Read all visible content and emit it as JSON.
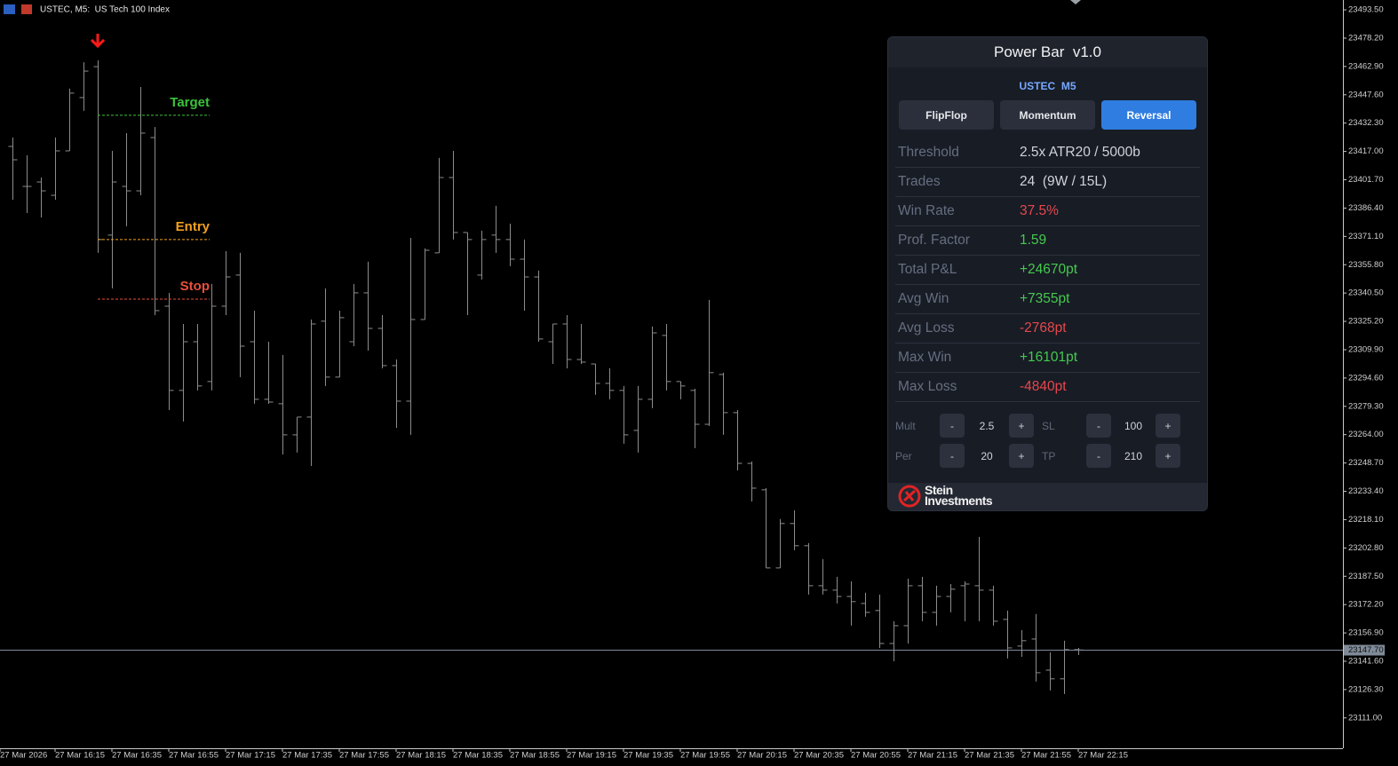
{
  "window": {
    "title": "USTEC, M5:  US Tech 100 Index"
  },
  "chart_data": {
    "type": "ohlc",
    "bar_color": "#8c8c8c",
    "open": [
      23419.7,
      23398.1,
      23400.5,
      23393.3,
      23417.3,
      23446.1,
      23462.8,
      23371.8,
      23398.1,
      23395.7,
      23424.5,
      23333.4,
      23287.9,
      23314.2,
      23292.7,
      23333.4,
      23350.2,
      23314.2,
      23283.1,
      23280.7,
      23263.9,
      23273.5,
      23325.3,
      23295.1,
      23314.2,
      23340.6,
      23321.4,
      23301.3,
      23282.1,
      23326.2,
      23362.2,
      23402.9,
      23373.2,
      23350.2,
      23371.8,
      23369.4,
      23358.8,
      23349.2,
      23314.2,
      23323.8,
      23304.6,
      23302.2,
      23291.7,
      23287.9,
      23266.3,
      23283.1,
      23317.6,
      23292.7,
      23287.9,
      23269.6,
      23296.5,
      23275.9,
      23248.5,
      23234.2,
      23192.0,
      23216.0,
      23204.0,
      23182.4,
      23180.0,
      23176.6,
      23172.8,
      23169.0,
      23151.2,
      23160.8,
      23182.4,
      23168.0,
      23176.6,
      23182.4,
      23182.4,
      23180.0,
      23164.2,
      23149.8,
      23153.6,
      23136.8,
      23132.1,
      23147.9
    ],
    "high": [
      23424.5,
      23414.9,
      23402.9,
      23424.5,
      23450.9,
      23465.2,
      23466.2,
      23417.3,
      23426.9,
      23451.8,
      23430.2,
      23340.6,
      23323.8,
      23323.8,
      23345.4,
      23363.1,
      23362.2,
      23331.0,
      23314.2,
      23307.0,
      23273.5,
      23326.2,
      23343.0,
      23331.0,
      23345.4,
      23357.4,
      23328.6,
      23304.6,
      23370.3,
      23364.6,
      23413.5,
      23417.3,
      23373.2,
      23374.2,
      23387.6,
      23378.0,
      23369.4,
      23352.6,
      23323.8,
      23328.6,
      23323.8,
      23302.2,
      23299.8,
      23290.3,
      23290.3,
      23322.4,
      23323.8,
      23292.7,
      23288.8,
      23336.8,
      23297.5,
      23277.3,
      23249.5,
      23235.1,
      23218.4,
      23223.1,
      23205.4,
      23196.8,
      23187.2,
      23184.8,
      23178.6,
      23177.6,
      23163.2,
      23186.2,
      23187.2,
      23182.4,
      23183.3,
      23184.8,
      23208.8,
      23182.4,
      23169.0,
      23158.4,
      23167.1,
      23146.4,
      23152.7,
      23148.8
    ],
    "low": [
      23390.9,
      23383.7,
      23381.3,
      23390.9,
      23417.3,
      23438.9,
      23362.2,
      23343.0,
      23376.6,
      23393.3,
      23328.6,
      23277.3,
      23271.1,
      23287.9,
      23287.9,
      23328.6,
      23295.1,
      23280.7,
      23280.7,
      23253.3,
      23254.3,
      23247.1,
      23290.3,
      23295.1,
      23311.8,
      23309.4,
      23299.8,
      23267.7,
      23263.9,
      23326.2,
      23362.2,
      23369.4,
      23328.6,
      23347.8,
      23362.2,
      23355.0,
      23331.0,
      23314.2,
      23302.2,
      23299.8,
      23302.2,
      23285.5,
      23283.1,
      23259.1,
      23254.3,
      23278.3,
      23287.9,
      23283.1,
      23256.7,
      23268.7,
      23263.9,
      23244.7,
      23227.9,
      23192.0,
      23192.0,
      23201.6,
      23177.6,
      23177.6,
      23172.8,
      23160.8,
      23165.6,
      23148.8,
      23141.6,
      23151.2,
      23163.2,
      23160.8,
      23168.0,
      23163.2,
      23163.2,
      23160.8,
      23143.1,
      23144.0,
      23130.6,
      23125.8,
      23123.9,
      23145.0
    ],
    "close": [
      23412.5,
      23398.1,
      23395.7,
      23417.3,
      23448.5,
      23460.4,
      23369.4,
      23400.5,
      23395.7,
      23426.9,
      23331.0,
      23287.9,
      23314.2,
      23290.3,
      23333.4,
      23349.2,
      23311.8,
      23283.1,
      23281.6,
      23263.9,
      23273.5,
      23323.8,
      23295.1,
      23327.2,
      23340.6,
      23321.4,
      23301.3,
      23282.1,
      23326.2,
      23363.6,
      23402.9,
      23373.2,
      23369.4,
      23369.4,
      23369.4,
      23358.8,
      23349.2,
      23315.7,
      23323.8,
      23304.6,
      23303.2,
      23291.7,
      23287.9,
      23263.9,
      23283.1,
      23319.0,
      23292.7,
      23290.3,
      23269.6,
      23297.5,
      23275.9,
      23248.5,
      23235.1,
      23192.0,
      23216.0,
      23204.0,
      23182.4,
      23180.0,
      23176.6,
      23173.8,
      23168.0,
      23151.2,
      23160.8,
      23182.4,
      23168.0,
      23176.6,
      23180.5,
      23183.3,
      23180.0,
      23163.2,
      23148.8,
      23152.7,
      23135.4,
      23132.1,
      23147.9,
      23147.7
    ],
    "xlim": [
      -0.875,
      93.625
    ],
    "xticks": [
      {
        "value": -0.875,
        "label": "27 Mar 2026"
      },
      {
        "value": 3,
        "label": "27 Mar 16:15"
      },
      {
        "value": 7,
        "label": "27 Mar 16:35"
      },
      {
        "value": 11,
        "label": "27 Mar 16:55"
      },
      {
        "value": 15,
        "label": "27 Mar 17:15"
      },
      {
        "value": 19,
        "label": "27 Mar 17:35"
      },
      {
        "value": 23,
        "label": "27 Mar 17:55"
      },
      {
        "value": 27,
        "label": "27 Mar 18:15"
      },
      {
        "value": 31,
        "label": "27 Mar 18:35"
      },
      {
        "value": 35,
        "label": "27 Mar 18:55"
      },
      {
        "value": 39,
        "label": "27 Mar 19:15"
      },
      {
        "value": 43,
        "label": "27 Mar 19:35"
      },
      {
        "value": 47,
        "label": "27 Mar 19:55"
      },
      {
        "value": 51,
        "label": "27 Mar 20:15"
      },
      {
        "value": 55,
        "label": "27 Mar 20:35"
      },
      {
        "value": 59,
        "label": "27 Mar 20:55"
      },
      {
        "value": 63,
        "label": "27 Mar 21:15"
      },
      {
        "value": 67,
        "label": "27 Mar 21:35"
      },
      {
        "value": 71,
        "label": "27 Mar 21:55"
      },
      {
        "value": 75,
        "label": "27 Mar 22:15"
      }
    ],
    "ylim": [
      23094.6,
      23498.8
    ],
    "yticks": [
      {
        "value": 23493.5,
        "label": "23493.50"
      },
      {
        "value": 23478.2,
        "label": "23478.20"
      },
      {
        "value": 23462.9,
        "label": "23462.90"
      },
      {
        "value": 23447.6,
        "label": "23447.60"
      },
      {
        "value": 23432.3,
        "label": "23432.30"
      },
      {
        "value": 23417,
        "label": "23417.00"
      },
      {
        "value": 23401.7,
        "label": "23401.70"
      },
      {
        "value": 23386.4,
        "label": "23386.40"
      },
      {
        "value": 23371.1,
        "label": "23371.10"
      },
      {
        "value": 23355.8,
        "label": "23355.80"
      },
      {
        "value": 23340.5,
        "label": "23340.50"
      },
      {
        "value": 23325.2,
        "label": "23325.20"
      },
      {
        "value": 23309.9,
        "label": "23309.90"
      },
      {
        "value": 23294.6,
        "label": "23294.60"
      },
      {
        "value": 23279.3,
        "label": "23279.30"
      },
      {
        "value": 23264,
        "label": "23264.00"
      },
      {
        "value": 23248.7,
        "label": "23248.70"
      },
      {
        "value": 23233.4,
        "label": "23233.40"
      },
      {
        "value": 23218.1,
        "label": "23218.10"
      },
      {
        "value": 23202.8,
        "label": "23202.80"
      },
      {
        "value": 23187.5,
        "label": "23187.50"
      },
      {
        "value": 23172.2,
        "label": "23172.20"
      },
      {
        "value": 23156.9,
        "label": "23156.90"
      },
      {
        "value": 23141.6,
        "label": "23141.60"
      },
      {
        "value": 23126.3,
        "label": "23126.30"
      },
      {
        "value": 23111,
        "label": "23111.00"
      }
    ],
    "grid": false,
    "current_price": {
      "value": 23147.7,
      "label": "23147.70"
    },
    "signal_index": 6,
    "signal_color": "#ff1a1a",
    "levels": [
      {
        "name": "Target",
        "value": 23436.5,
        "color": "#3cc23c"
      },
      {
        "name": "Entry",
        "value": 23369.4,
        "color": "#f0a020"
      },
      {
        "name": "Stop",
        "value": 23337.2,
        "color": "#e8503c"
      }
    ]
  },
  "panel": {
    "title": "Power Bar  v1.0",
    "symbol": "USTEC  M5",
    "modes": [
      "FlipFlop",
      "Momentum",
      "Reversal"
    ],
    "active_mode": 2,
    "stats": [
      {
        "label": "Threshold",
        "value": "2.5x ATR20 / 5000b",
        "color": "#d0d3d9"
      },
      {
        "label": "Trades",
        "value": "24  (9W / 15L)",
        "color": "#d0d3d9"
      },
      {
        "label": "Win Rate",
        "value": "37.5%",
        "color": "#e5484d"
      },
      {
        "label": "Prof. Factor",
        "value": "1.59",
        "color": "#45c94f"
      },
      {
        "label": "Total P&L",
        "value": "+24670pt",
        "color": "#45c94f"
      },
      {
        "label": "Avg Win",
        "value": "+7355pt",
        "color": "#45c94f"
      },
      {
        "label": "Avg Loss",
        "value": "-2768pt",
        "color": "#e5484d"
      },
      {
        "label": "Max Win",
        "value": "+16101pt",
        "color": "#45c94f"
      },
      {
        "label": "Max Loss",
        "value": "-4840pt",
        "color": "#e5484d"
      }
    ],
    "controls": [
      {
        "label": "Mult",
        "value": "2.5"
      },
      {
        "label": "SL",
        "value": "100"
      },
      {
        "label": "Per",
        "value": "20"
      },
      {
        "label": "TP",
        "value": "210"
      }
    ],
    "minus": "-",
    "plus": "+",
    "brand": {
      "line1": "Stein",
      "line2": "Investments"
    }
  }
}
